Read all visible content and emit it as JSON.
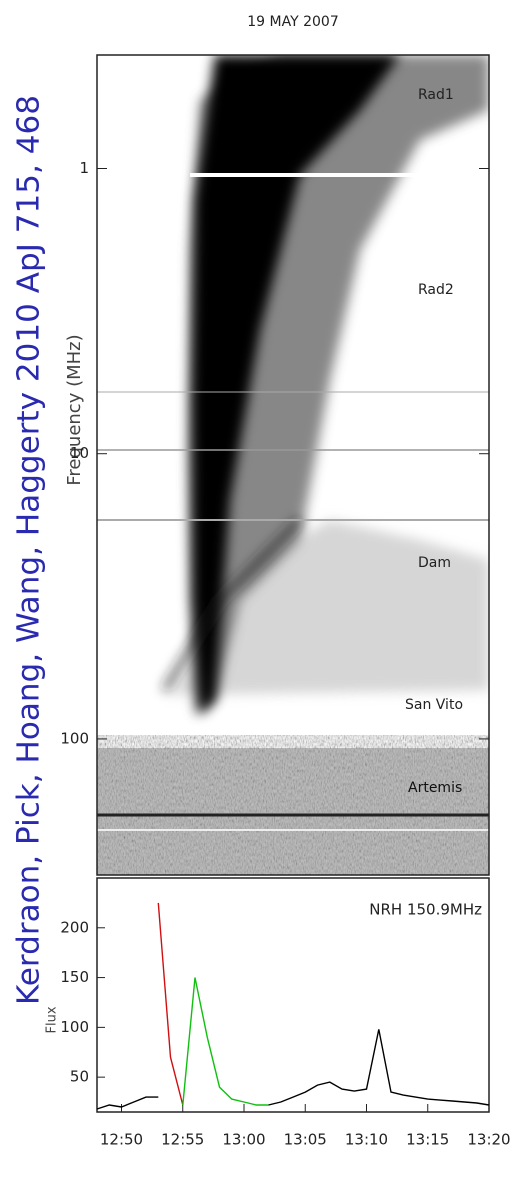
{
  "overlay_text": "Kerdraon, Pick, Hoang, Wang, Haggerty 2010 ApJ 715, 468",
  "chart_data": [
    {
      "type": "spectrogram",
      "title": "19 MAY 2007",
      "y_label": "Frequency (MHz)",
      "ylim": [
        0.4,
        300
      ],
      "yticks": [
        1,
        10,
        100
      ],
      "log_y": true,
      "inverted_y": true,
      "annotations": [
        "Rad1",
        "Rad2",
        "Dam",
        "San Vito",
        "Artemis"
      ]
    },
    {
      "type": "line",
      "y_label": "Flux",
      "annotation": "NRH 150.9MHz",
      "x": [
        "12:48",
        "12:49",
        "12:50",
        "12:51",
        "12:52",
        "12:53",
        "12:54",
        "12:55",
        "12:56",
        "12:57",
        "12:58",
        "12:59",
        "13:00",
        "13:01",
        "13:02",
        "13:03",
        "13:04",
        "13:05",
        "13:06",
        "13:07",
        "13:08",
        "13:09",
        "13:10",
        "13:11",
        "13:12",
        "13:13",
        "13:14",
        "13:15",
        "13:16",
        "13:17",
        "13:18",
        "13:19",
        "13:20"
      ],
      "xlim": [
        "12:48",
        "13:20"
      ],
      "xticks": [
        "12:50",
        "12:55",
        "13:00",
        "13:05",
        "13:10",
        "13:15",
        "13:20"
      ],
      "ylim": [
        15,
        250
      ],
      "yticks": [
        50,
        100,
        150,
        200
      ],
      "series": [
        {
          "color": "#000000",
          "values": [
            18,
            22,
            20,
            25,
            30,
            30,
            null,
            null,
            null,
            null,
            null,
            null,
            null,
            null,
            22,
            25,
            30,
            35,
            42,
            45,
            38,
            36,
            38,
            98,
            35,
            32,
            30,
            28,
            27,
            26,
            25,
            24,
            22
          ]
        },
        {
          "color": "#d01010",
          "values": [
            null,
            null,
            null,
            null,
            null,
            225,
            70,
            22,
            null,
            null,
            null,
            null,
            null,
            null,
            null,
            null,
            null,
            null,
            null,
            null,
            null,
            null,
            null,
            null,
            null,
            null,
            null,
            null,
            null,
            null,
            null,
            null,
            null
          ]
        },
        {
          "color": "#10c010",
          "values": [
            null,
            null,
            null,
            null,
            null,
            null,
            null,
            22,
            150,
            90,
            40,
            28,
            25,
            22,
            22,
            null,
            null,
            null,
            null,
            null,
            null,
            null,
            null,
            null,
            null,
            null,
            null,
            null,
            null,
            null,
            null,
            null,
            null
          ]
        }
      ]
    }
  ]
}
